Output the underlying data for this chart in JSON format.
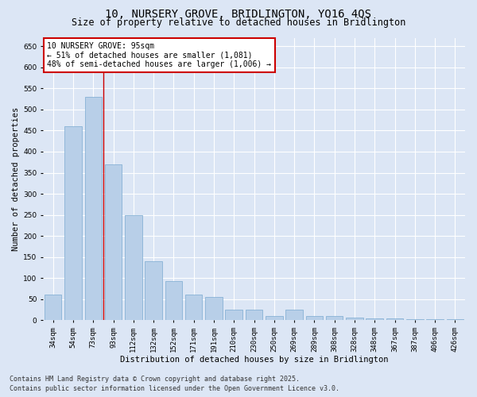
{
  "title_line1": "10, NURSERY GROVE, BRIDLINGTON, YO16 4QS",
  "title_line2": "Size of property relative to detached houses in Bridlington",
  "xlabel": "Distribution of detached houses by size in Bridlington",
  "ylabel": "Number of detached properties",
  "categories": [
    "34sqm",
    "54sqm",
    "73sqm",
    "93sqm",
    "112sqm",
    "132sqm",
    "152sqm",
    "171sqm",
    "191sqm",
    "210sqm",
    "230sqm",
    "250sqm",
    "269sqm",
    "289sqm",
    "308sqm",
    "328sqm",
    "348sqm",
    "367sqm",
    "387sqm",
    "406sqm",
    "426sqm"
  ],
  "values": [
    62,
    460,
    530,
    370,
    250,
    140,
    93,
    62,
    55,
    25,
    25,
    10,
    25,
    10,
    10,
    7,
    5,
    4,
    3,
    2,
    2
  ],
  "bar_color": "#b8cfe8",
  "bar_edge_color": "#7aaad0",
  "vline_x_index": 3,
  "vline_color": "#cc0000",
  "annotation_line1": "10 NURSERY GROVE: 95sqm",
  "annotation_line2": "← 51% of detached houses are smaller (1,081)",
  "annotation_line3": "48% of semi-detached houses are larger (1,006) →",
  "ylim": [
    0,
    670
  ],
  "yticks": [
    0,
    50,
    100,
    150,
    200,
    250,
    300,
    350,
    400,
    450,
    500,
    550,
    600,
    650
  ],
  "bg_color": "#dce6f5",
  "plot_bg_color": "#dce6f5",
  "footer_line1": "Contains HM Land Registry data © Crown copyright and database right 2025.",
  "footer_line2": "Contains public sector information licensed under the Open Government Licence v3.0.",
  "title_fontsize": 10,
  "subtitle_fontsize": 8.5,
  "axis_label_fontsize": 7.5,
  "tick_fontsize": 6.5,
  "annotation_fontsize": 7,
  "footer_fontsize": 6
}
